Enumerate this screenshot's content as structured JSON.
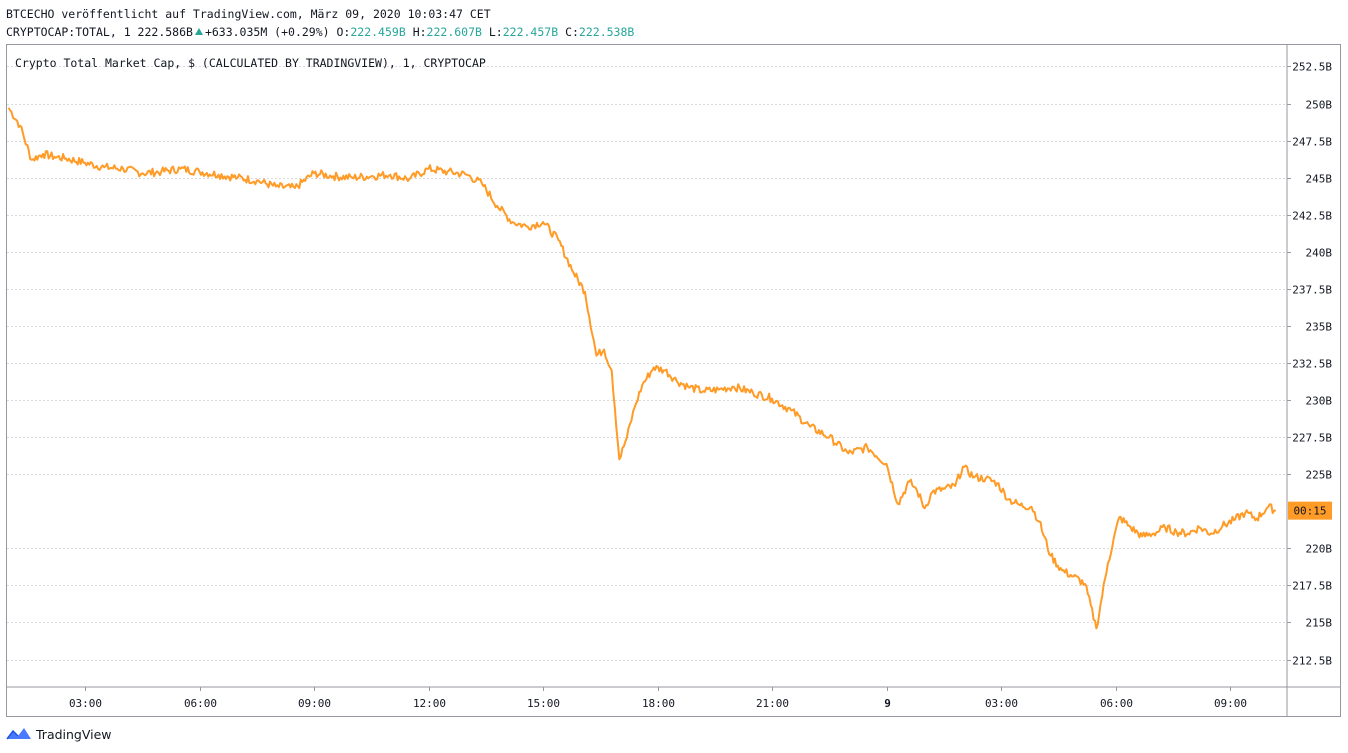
{
  "header": {
    "line1": "BTCECHO veröffentlicht auf TradingView.com, März 09, 2020 10:03:47 CET",
    "symbol": "CRYPTOCAP:TOTAL, 1 222.586B",
    "change": "+633.035M (+0.29%)",
    "o_label": "O:",
    "o_value": "222.459B",
    "h_label": "H:",
    "h_value": "222.607B",
    "l_label": "L:",
    "l_value": "222.457B",
    "c_label": "C:",
    "c_value": "222.538B"
  },
  "footer": {
    "brand": "TradingView"
  },
  "colors": {
    "line": "#ff9b26",
    "grid": "#d9dbe0",
    "axis_text": "#131722",
    "teal": "#26a69a"
  },
  "chart_data": {
    "type": "line",
    "title": "Crypto Total Market Cap, $ (CALCULATED BY TRADINGVIEW), 1, CRYPTOCAP",
    "xlabel": "",
    "ylabel": "",
    "ylim": [
      210.5,
      253.5
    ],
    "xlim": [
      0,
      33.5
    ],
    "grid": true,
    "y_ticks": [
      252.5,
      250,
      247.5,
      245,
      242.5,
      240,
      237.5,
      235,
      232.5,
      230,
      227.5,
      225,
      220,
      217.5,
      215,
      212.5
    ],
    "y_tick_labels": [
      "252.5B",
      "250B",
      "247.5B",
      "245B",
      "242.5B",
      "240B",
      "237.5B",
      "235B",
      "232.5B",
      "230B",
      "227.5B",
      "225B",
      "220B",
      "217.5B",
      "215B",
      "212.5B"
    ],
    "x_ticks": [
      2,
      5,
      8,
      11,
      14,
      17,
      20,
      23,
      26,
      29,
      32
    ],
    "x_tick_labels": [
      "03:00",
      "06:00",
      "09:00",
      "12:00",
      "15:00",
      "18:00",
      "21:00",
      "9",
      "03:00",
      "06:00",
      "09:00"
    ],
    "price_label": "00:15",
    "last_value": 222.54,
    "series": [
      {
        "x": [
          0,
          0.3,
          0.6,
          0.9,
          1.2,
          1.5,
          2,
          2.5,
          3,
          3.5,
          4,
          4.5,
          5,
          5.5,
          6,
          6.5,
          7,
          7.5,
          8,
          8.5,
          9,
          9.5,
          10,
          10.5,
          11,
          11.5,
          12,
          12.4,
          12.8,
          13.2,
          13.6,
          14,
          14.4,
          14.8,
          15.1,
          15.4,
          15.6,
          15.8,
          16,
          16.2,
          16.4,
          16.6,
          16.9,
          17.2,
          17.5,
          17.8,
          18.2,
          18.6,
          19,
          19.5,
          20,
          20.5,
          21,
          21.5,
          22,
          22.5,
          23,
          23.3,
          23.6,
          23.8,
          24,
          24.2,
          24.5,
          24.8,
          25,
          25.3,
          25.6,
          25.9,
          26.2,
          26.5,
          26.8,
          27,
          27.3,
          27.6,
          27.9,
          28.2,
          28.5,
          28.8,
          29.1,
          29.4,
          29.7,
          30,
          30.3,
          30.6,
          30.9,
          31.2,
          31.5,
          31.8,
          32.1,
          32.4,
          32.7,
          33,
          33.2
        ],
        "y": [
          249.7,
          248.5,
          246.2,
          246.6,
          246.4,
          246.3,
          246.0,
          245.7,
          245.6,
          245.3,
          245.4,
          245.6,
          245.4,
          245.2,
          245.0,
          244.8,
          244.4,
          244.3,
          245.3,
          245.1,
          245.0,
          245.1,
          245.2,
          244.9,
          245.6,
          245.4,
          245.2,
          244.6,
          243.1,
          242.0,
          241.7,
          242.0,
          240.8,
          238.6,
          237.3,
          233.0,
          233.4,
          232.0,
          226.0,
          227.5,
          229.5,
          231.0,
          232.2,
          232.0,
          231.3,
          230.9,
          230.6,
          230.7,
          230.9,
          230.5,
          230.1,
          229.3,
          228.2,
          227.5,
          226.4,
          226.8,
          225.7,
          223.0,
          224.5,
          223.9,
          222.7,
          223.8,
          224.0,
          224.2,
          225.5,
          224.8,
          224.7,
          224.4,
          223.3,
          222.9,
          222.8,
          221.8,
          219.5,
          218.5,
          218.1,
          217.6,
          214.6,
          219.0,
          222.1,
          221.4,
          220.8,
          221.0,
          221.4,
          221.1,
          221.0,
          221.4,
          221.0,
          221.5,
          221.9,
          222.4,
          222.0,
          222.8,
          222.54
        ]
      }
    ]
  }
}
